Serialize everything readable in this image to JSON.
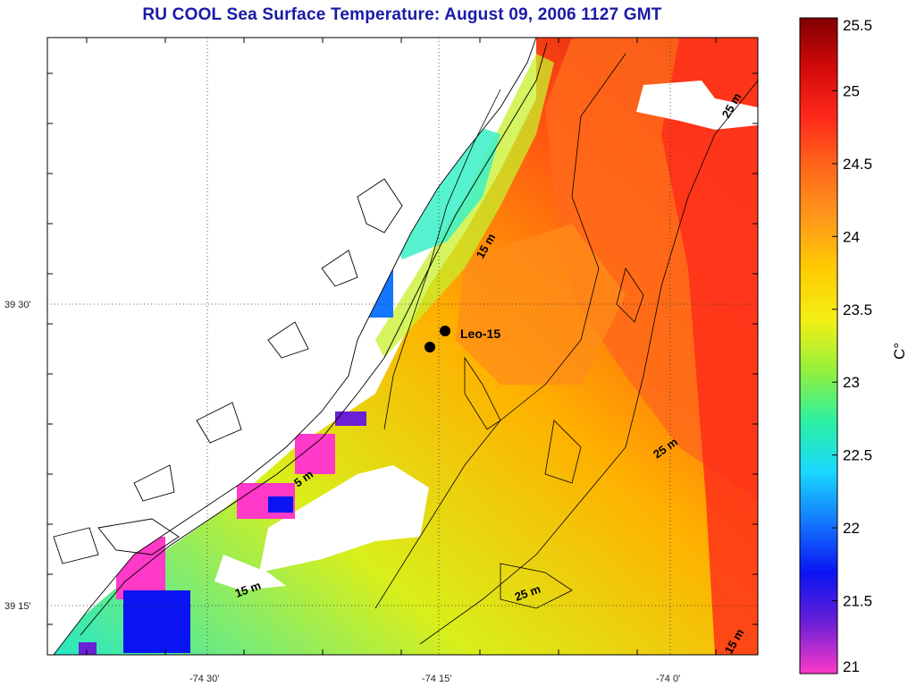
{
  "title": "RU COOL  Sea Surface Temperature:  August 09, 2006 1127 GMT",
  "colorbar": {
    "unit_label": "C°",
    "ticks": [
      "21",
      "21.5",
      "22",
      "22.5",
      "23",
      "23.5",
      "24",
      "24.5",
      "25",
      "25.5"
    ],
    "min": 21,
    "max": 25.5,
    "palette": [
      "#ff39c8",
      "#6b1fd6",
      "#0a14f2",
      "#1477ff",
      "#19d8ff",
      "#2bf0a2",
      "#93f03c",
      "#f3ef15",
      "#ffcc00",
      "#ff9a1a",
      "#ff6a1a",
      "#ff2a1a",
      "#d40a0a",
      "#800000"
    ]
  },
  "axes": {
    "lat_labels": [
      "39 30'",
      "39 15'"
    ],
    "lon_labels": [
      "-74 30'",
      "-74 15'",
      "-74 0'"
    ]
  },
  "isobath_labels": [
    "15 m",
    "5 m",
    "15 m",
    "25 m",
    "25 m",
    "25 m",
    "15 m"
  ],
  "marker": {
    "label": "Leo-15"
  }
}
